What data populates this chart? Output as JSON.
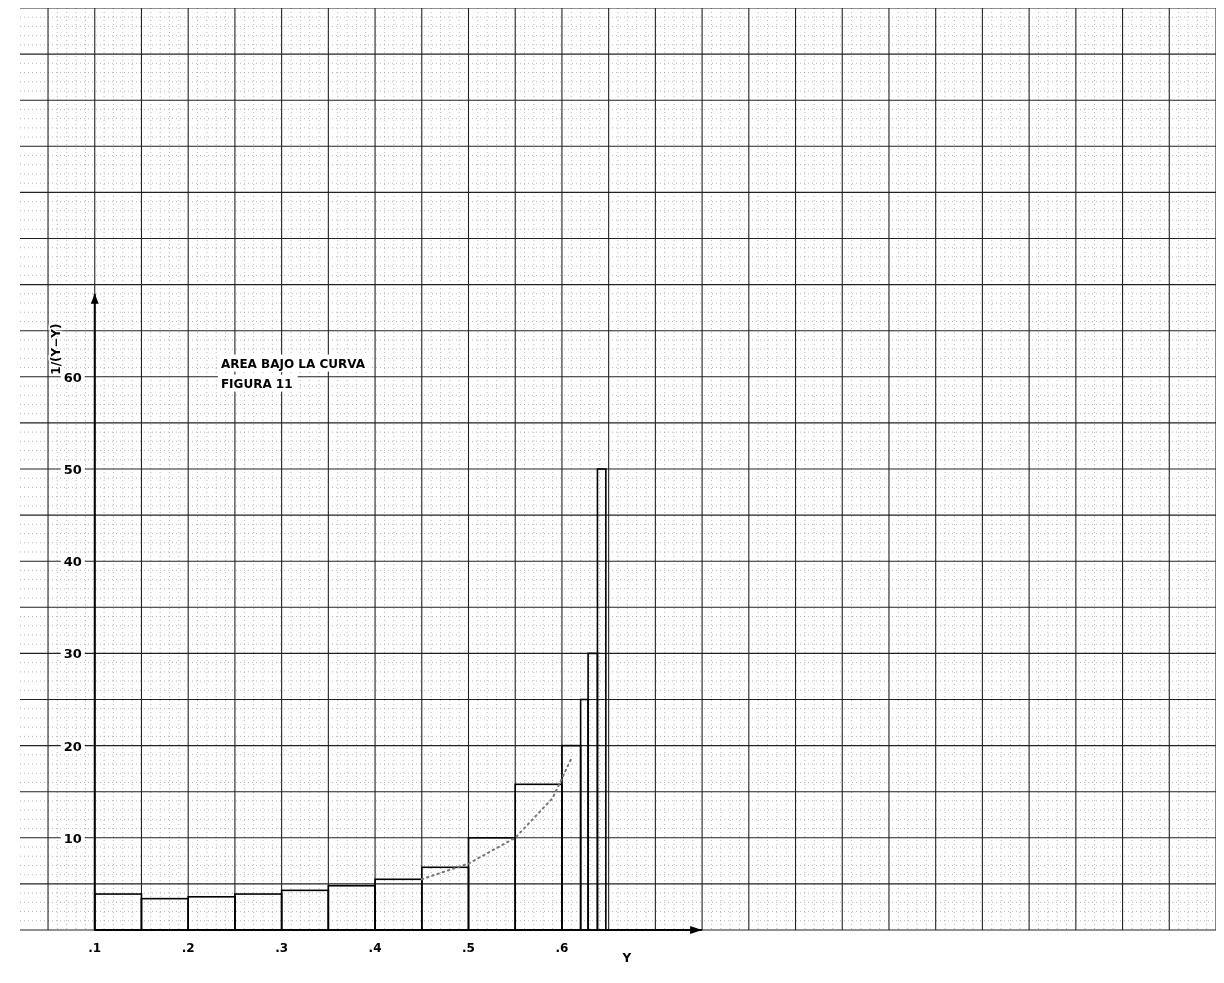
{
  "chart_data": {
    "type": "histogram",
    "xlabel": "Y",
    "ylabel": "1/(Y−Y)",
    "annotations": [
      "AREA BAJO LA CURVA",
      "FIGURA 11"
    ],
    "bins": [
      0.1,
      0.15,
      0.2,
      0.25,
      0.3,
      0.35,
      0.4,
      0.45,
      0.5,
      0.55,
      0.6,
      0.62,
      0.628,
      0.638,
      0.647
    ],
    "values": [
      3.9,
      3.4,
      3.6,
      3.9,
      4.3,
      4.8,
      5.5,
      6.8,
      10,
      15.8,
      20,
      25,
      30,
      50
    ],
    "color": "#000000",
    "series": [
      {
        "type": "line",
        "x": [
          0.45,
          0.5,
          0.55,
          0.59,
          0.61
        ],
        "values": [
          5.5,
          7.2,
          10,
          14.3,
          18.6
        ],
        "color": "#777777"
      }
    ],
    "line_style": "dotted",
    "xlim": [
      0.02,
      1.3
    ],
    "ylim": [
      0,
      100
    ],
    "xticks": [
      {
        "value": 0.1,
        "label": ".1"
      },
      {
        "value": 0.2,
        "label": ".2"
      },
      {
        "value": 0.3,
        "label": ".3"
      },
      {
        "value": 0.4,
        "label": ".4"
      },
      {
        "value": 0.5,
        "label": ".5"
      },
      {
        "value": 0.6,
        "label": ".6"
      }
    ],
    "yticks": [
      10,
      20,
      30,
      40,
      50,
      60
    ],
    "grid": true
  }
}
